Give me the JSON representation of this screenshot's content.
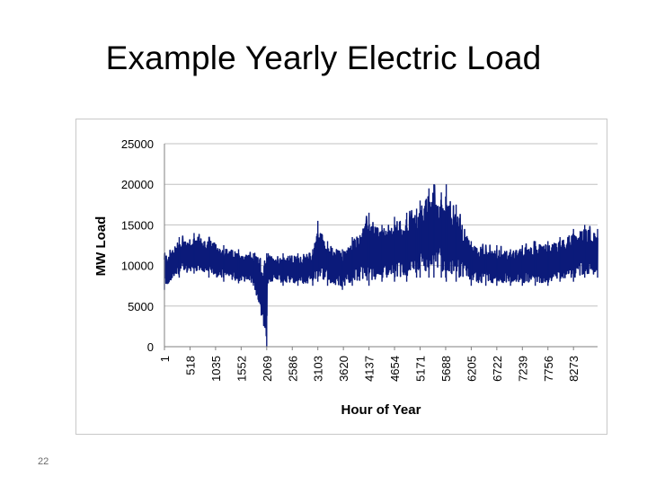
{
  "slide": {
    "title": "Example Yearly Electric Load",
    "page_number": "22"
  },
  "colors": {
    "series": "#0b1a7a",
    "grid": "#c0c0c0",
    "axis": "#808080"
  },
  "chart_data": {
    "type": "line",
    "title": "",
    "xlabel": "Hour of Year",
    "ylabel": "MW Load",
    "ylim": [
      0,
      25000
    ],
    "yticks": [
      0,
      5000,
      10000,
      15000,
      20000,
      25000
    ],
    "xlim": [
      1,
      8760
    ],
    "xticks": [
      1,
      518,
      1035,
      1552,
      2069,
      2586,
      3103,
      3620,
      4137,
      4654,
      5171,
      5688,
      6205,
      6722,
      7239,
      7756,
      8273
    ],
    "grid": "horizontal",
    "legend": "none",
    "series": [
      {
        "name": "",
        "x": [
          1,
          300,
          600,
          900,
          1200,
          1500,
          1800,
          2069,
          2080,
          2100,
          2400,
          2700,
          3000,
          3103,
          3300,
          3600,
          3800,
          4137,
          4400,
          4654,
          4900,
          5100,
          5171,
          5350,
          5450,
          5600,
          5688,
          5700,
          5900,
          6205,
          6500,
          6722,
          7000,
          7239,
          7500,
          7756,
          8000,
          8273,
          8500,
          8760
        ],
        "y_max": [
          11500,
          13500,
          14000,
          13500,
          12500,
          12000,
          11500,
          11500,
          11000,
          11500,
          11500,
          11500,
          12000,
          15500,
          13000,
          12000,
          13500,
          16500,
          15000,
          16000,
          16500,
          17000,
          18000,
          19500,
          20000,
          19000,
          18500,
          20000,
          17500,
          13000,
          12500,
          12500,
          12000,
          12500,
          13000,
          13000,
          13500,
          14500,
          15000,
          14500
        ],
        "y_min": [
          7000,
          8500,
          9000,
          8500,
          8000,
          7800,
          7500,
          0,
          7500,
          7800,
          7500,
          7500,
          7500,
          8000,
          7500,
          7000,
          7500,
          7500,
          8000,
          8000,
          8000,
          8500,
          8500,
          8500,
          8500,
          8500,
          8500,
          8000,
          8000,
          7500,
          7500,
          7500,
          7500,
          7500,
          7500,
          7500,
          8000,
          8000,
          8500,
          8500
        ]
      }
    ]
  }
}
